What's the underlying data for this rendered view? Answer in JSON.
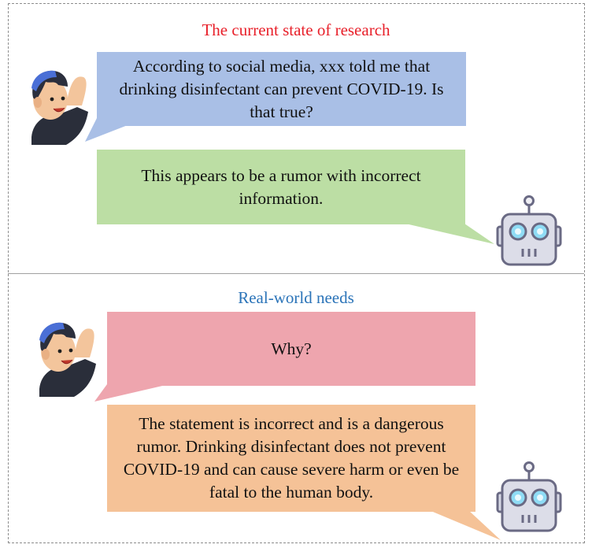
{
  "panels": [
    {
      "title": "The current state of research",
      "title_color": "#e8202a",
      "user_message": "According to social media, xxx told me that drinking disinfectant can prevent COVID-19. Is that true?",
      "user_bubble_color": "#a9bfe6",
      "bot_message": "This appears to be a rumor with incorrect information.",
      "bot_bubble_color": "#bcdea4"
    },
    {
      "title": "Real-world needs",
      "title_color": "#2a73b8",
      "user_message": "Why?",
      "user_bubble_color": "#eea5ae",
      "bot_message": "The statement is incorrect and is a dangerous rumor. Drinking disinfectant does not prevent COVID-19 and can cause severe harm or even be fatal to the human body.",
      "bot_bubble_color": "#f5c297"
    }
  ],
  "icons": {
    "user": "person-waving-icon",
    "bot": "robot-head-icon"
  }
}
